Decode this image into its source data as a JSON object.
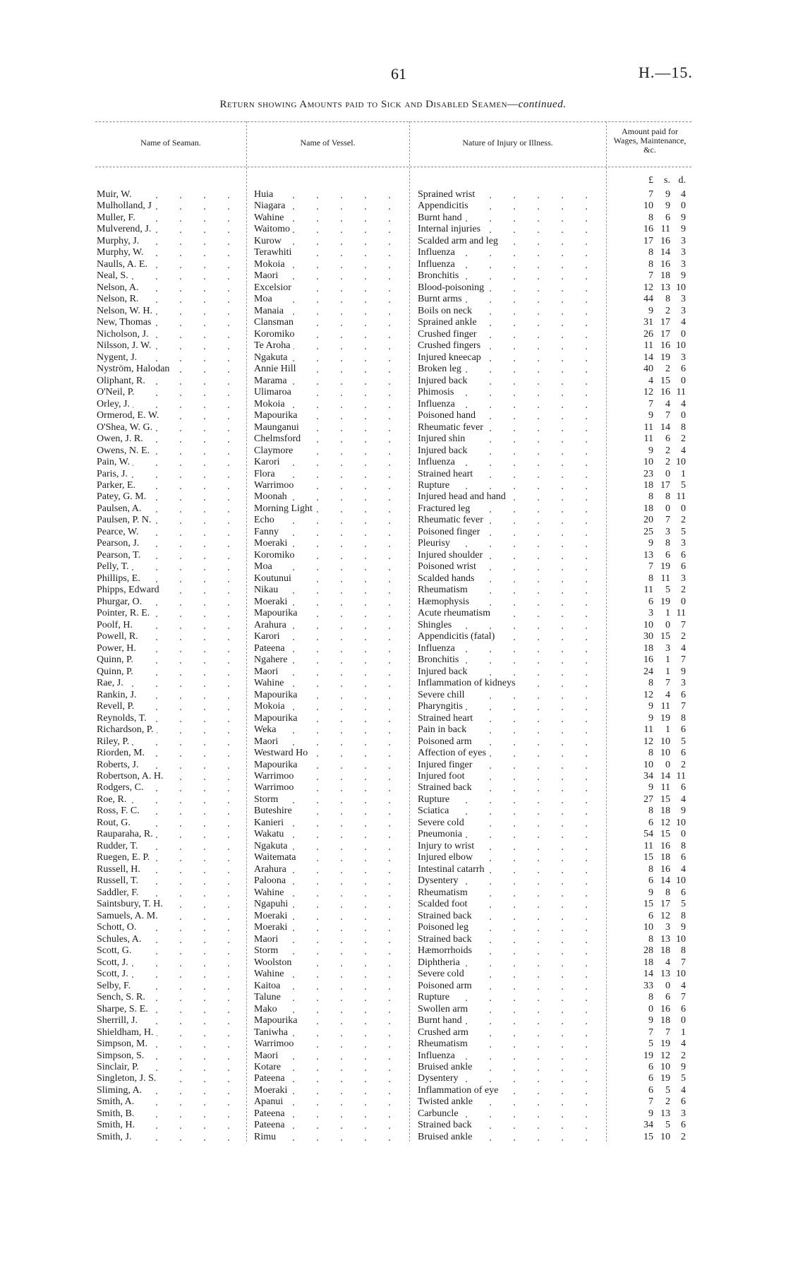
{
  "page_number": "61",
  "doc_ref": "H.—15.",
  "title": {
    "main": "Return showing Amounts paid to Sick and Disabled Seamen—",
    "suffix": "continued."
  },
  "headers": {
    "name": "Name of Seaman.",
    "vessel": "Name of Vessel.",
    "injury": "Nature of Injury or Illness.",
    "amount": "Amount paid for Wages, Maintenance, &c.",
    "pounds": "£",
    "shillings": "s.",
    "pence": "d."
  },
  "rows": [
    [
      "Muir, W.",
      "Huia",
      "Sprained wrist",
      "7",
      "9",
      "4"
    ],
    [
      "Mulholland, J",
      "Niagara",
      "Appendicitis",
      "10",
      "9",
      "0"
    ],
    [
      "Muller, F.",
      "Wahine",
      "Burnt hand",
      "8",
      "6",
      "9"
    ],
    [
      "Mulverend, J.",
      "Waitomo",
      "Internal injuries",
      "16",
      "11",
      "9"
    ],
    [
      "Murphy, J.",
      "Kurow",
      "Scalded arm and leg",
      "17",
      "16",
      "3"
    ],
    [
      "Murphy, W.",
      "Terawhiti",
      "Influenza",
      "8",
      "14",
      "3"
    ],
    [
      "Naulls, A. E.",
      "Mokoia",
      "Influenza",
      "8",
      "16",
      "3"
    ],
    [
      "Neal, S.",
      "Maori",
      "Bronchitis",
      "7",
      "18",
      "9"
    ],
    [
      "Nelson, A.",
      "Excelsior",
      "Blood-poisoning",
      "12",
      "13",
      "10"
    ],
    [
      "Nelson, R.",
      "Moa",
      "Burnt arms",
      "44",
      "8",
      "3"
    ],
    [
      "Nelson, W. H.",
      "Manaia",
      "Boils on neck",
      "9",
      "2",
      "3"
    ],
    [
      "New, Thomas",
      "Clansman",
      "Sprained ankle",
      "31",
      "17",
      "4"
    ],
    [
      "Nicholson, J.",
      "Koromiko",
      "Crushed finger",
      "26",
      "17",
      "0"
    ],
    [
      "Nilsson, J. W.",
      "Te Aroha",
      "Crushed fingers",
      "11",
      "16",
      "10"
    ],
    [
      "Nygent, J.",
      "Ngakuta",
      "Injured kneecap",
      "14",
      "19",
      "3"
    ],
    [
      "Nyström, Halodan",
      "Annie Hill",
      "Broken leg",
      "40",
      "2",
      "6"
    ],
    [
      "Oliphant, R.",
      "Marama",
      "Injured back",
      "4",
      "15",
      "0"
    ],
    [
      "O'Neil, P.",
      "Ulimaroa",
      "Phimosis",
      "12",
      "16",
      "11"
    ],
    [
      "Orley, J.",
      "Mokoia",
      "Influenza",
      "7",
      "4",
      "4"
    ],
    [
      "Ormerod, E. W.",
      "Mapourika",
      "Poisoned hand",
      "9",
      "7",
      "0"
    ],
    [
      "O'Shea, W. G.",
      "Maunganui",
      "Rheumatic fever",
      "11",
      "14",
      "8"
    ],
    [
      "Owen, J. R.",
      "Chelmsford",
      "Injured shin",
      "11",
      "6",
      "2"
    ],
    [
      "Owens, N. E.",
      "Claymore",
      "Injured back",
      "9",
      "2",
      "4"
    ],
    [
      "Pain, W.",
      "Karori",
      "Influenza",
      "10",
      "2",
      "10"
    ],
    [
      "Paris, J.",
      "Flora",
      "Strained heart",
      "23",
      "0",
      "1"
    ],
    [
      "Parker, E.",
      "Warrimoo",
      "Rupture",
      "18",
      "17",
      "5"
    ],
    [
      "Patey, G. M.",
      "Moonah",
      "Injured head and hand",
      "8",
      "8",
      "11"
    ],
    [
      "Paulsen, A.",
      "Morning Light",
      "Fractured leg",
      "18",
      "0",
      "0"
    ],
    [
      "Paulsen, P. N.",
      "Echo",
      "Rheumatic fever",
      "20",
      "7",
      "2"
    ],
    [
      "Pearce, W.",
      "Fanny",
      "Poisoned finger",
      "25",
      "3",
      "5"
    ],
    [
      "Pearson, J.",
      "Moeraki",
      "Pleurisy",
      "9",
      "8",
      "3"
    ],
    [
      "Pearson, T.",
      "Koromiko",
      "Injured shoulder",
      "13",
      "6",
      "6"
    ],
    [
      "Pelly, T.",
      "Moa",
      "Poisoned wrist",
      "7",
      "19",
      "6"
    ],
    [
      "Phillips, E.",
      "Koutunui",
      "Scalded hands",
      "8",
      "11",
      "3"
    ],
    [
      "Phipps, Edward",
      "Nikau",
      "Rheumatism",
      "11",
      "5",
      "2"
    ],
    [
      "Phurgar, O.",
      "Moeraki",
      "Hæmophysis",
      "6",
      "19",
      "0"
    ],
    [
      "Pointer, R. E.",
      "Mapourika",
      "Acute rheumatism",
      "3",
      "1",
      "11"
    ],
    [
      "Poolf, H.",
      "Arahura",
      "Shingles",
      "10",
      "0",
      "7"
    ],
    [
      "Powell, R.",
      "Karori",
      "Appendicitis (fatal)",
      "30",
      "15",
      "2"
    ],
    [
      "Power, H.",
      "Pateena",
      "Influenza",
      "18",
      "3",
      "4"
    ],
    [
      "Quinn, P.",
      "Ngahere",
      "Bronchitis",
      "16",
      "1",
      "7"
    ],
    [
      "Quinn, P.",
      "Maori",
      "Injured back",
      "24",
      "1",
      "9"
    ],
    [
      "Rae, J.",
      "Wahine",
      "Inflammation of kidneys",
      "8",
      "7",
      "3"
    ],
    [
      "Rankin, J.",
      "Mapourika",
      "Severe chill",
      "12",
      "4",
      "6"
    ],
    [
      "Revell, P.",
      "Mokoia",
      "Pharyngitis",
      "9",
      "11",
      "7"
    ],
    [
      "Reynolds, T.",
      "Mapourika",
      "Strained heart",
      "9",
      "19",
      "8"
    ],
    [
      "Richardson, P.",
      "Weka",
      "Pain in back",
      "11",
      "1",
      "6"
    ],
    [
      "Riley, P.",
      "Maori",
      "Poisoned arm",
      "12",
      "10",
      "5"
    ],
    [
      "Riorden, M.",
      "Westward Ho",
      "Affection of eyes",
      "8",
      "10",
      "6"
    ],
    [
      "Roberts, J.",
      "Mapourika",
      "Injured finger",
      "10",
      "0",
      "2"
    ],
    [
      "Robertson, A. H.",
      "Warrimoo",
      "Injured foot",
      "34",
      "14",
      "11"
    ],
    [
      "Rodgers, C.",
      "Warrimoo",
      "Strained back",
      "9",
      "11",
      "6"
    ],
    [
      "Roe, R.",
      "Storm",
      "Rupture",
      "27",
      "15",
      "4"
    ],
    [
      "Ross, F. C.",
      "Buteshire",
      "Sciatica",
      "8",
      "18",
      "9"
    ],
    [
      "Rout, G.",
      "Kanieri",
      "Severe cold",
      "6",
      "12",
      "10"
    ],
    [
      "Rauparaha, R.",
      "Wakatu",
      "Pneumonia",
      "54",
      "15",
      "0"
    ],
    [
      "Rudder, T.",
      "Ngakuta",
      "Injury to wrist",
      "11",
      "16",
      "8"
    ],
    [
      "Ruegen, E. P.",
      "Waitemata",
      "Injured elbow",
      "15",
      "18",
      "6"
    ],
    [
      "Russell, H.",
      "Arahura",
      "Intestinal catarrh",
      "8",
      "16",
      "4"
    ],
    [
      "Russell, T.",
      "Paloona",
      "Dysentery",
      "6",
      "14",
      "10"
    ],
    [
      "Saddler, F.",
      "Wahine",
      "Rheumatism",
      "9",
      "8",
      "6"
    ],
    [
      "Saintsbury, T. H.",
      "Ngapuhi",
      "Scalded foot",
      "15",
      "17",
      "5"
    ],
    [
      "Samuels, A. M.",
      "Moeraki",
      "Strained back",
      "6",
      "12",
      "8"
    ],
    [
      "Schott, O.",
      "Moeraki",
      "Poisoned leg",
      "10",
      "3",
      "9"
    ],
    [
      "Schules, A.",
      "Maori",
      "Strained back",
      "8",
      "13",
      "10"
    ],
    [
      "Scott, G.",
      "Storm",
      "Hæmorrhoids",
      "28",
      "18",
      "8"
    ],
    [
      "Scott, J.",
      "Woolston",
      "Diphtheria",
      "18",
      "4",
      "7"
    ],
    [
      "Scott, J.",
      "Wahine",
      "Severe cold",
      "14",
      "13",
      "10"
    ],
    [
      "Selby, F.",
      "Kaitoa",
      "Poisoned arm",
      "33",
      "0",
      "4"
    ],
    [
      "Sench, S. R.",
      "Talune",
      "Rupture",
      "8",
      "6",
      "7"
    ],
    [
      "Sharpe, S. E.",
      "Mako",
      "Swollen arm",
      "0",
      "16",
      "6"
    ],
    [
      "Sherrill, J.",
      "Mapourika",
      "Burnt hand",
      "9",
      "18",
      "0"
    ],
    [
      "Shieldham, H.",
      "Taniwha",
      "Crushed arm",
      "7",
      "7",
      "1"
    ],
    [
      "Simpson, M.",
      "Warrimoo",
      "Rheumatism",
      "5",
      "19",
      "4"
    ],
    [
      "Simpson, S.",
      "Maori",
      "Influenza",
      "19",
      "12",
      "2"
    ],
    [
      "Sinclair, P.",
      "Kotare",
      "Bruised ankle",
      "6",
      "10",
      "9"
    ],
    [
      "Singleton, J. S.",
      "Pateena",
      "Dysentery",
      "6",
      "19",
      "5"
    ],
    [
      "Sliming, A.",
      "Moeraki",
      "Inflammation of eye",
      "6",
      "5",
      "4"
    ],
    [
      "Smith, A.",
      "Apanui",
      "Twisted ankle",
      "7",
      "2",
      "6"
    ],
    [
      "Smith, B.",
      "Pateena",
      "Carbuncle",
      "9",
      "13",
      "3"
    ],
    [
      "Smith, H.",
      "Pateena",
      "Strained back",
      "34",
      "5",
      "6"
    ],
    [
      "Smith, J.",
      "Rimu",
      "Bruised ankle",
      "15",
      "10",
      "2"
    ]
  ]
}
